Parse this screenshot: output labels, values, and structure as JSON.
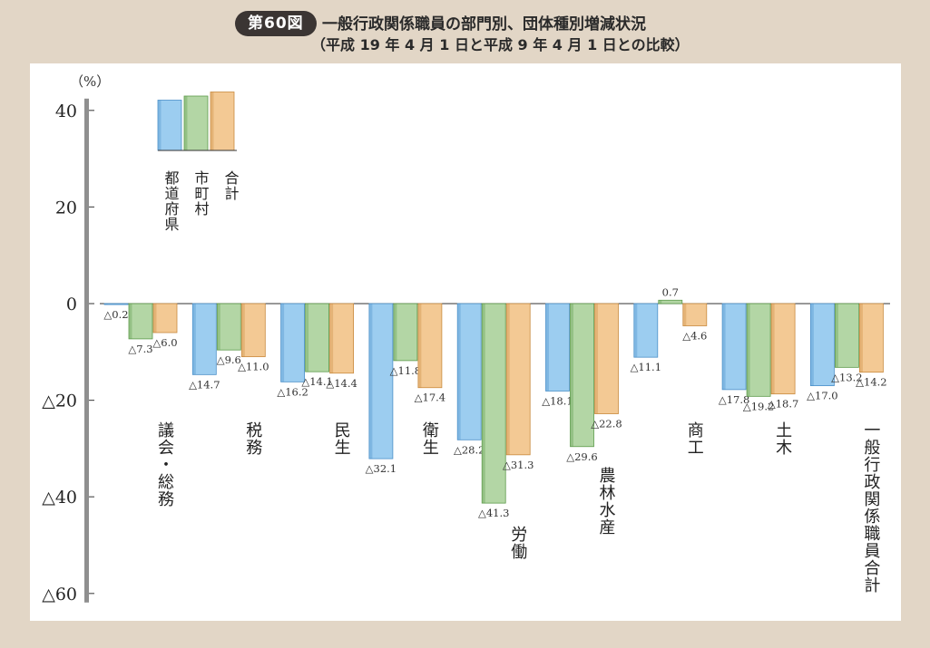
{
  "figure": {
    "badge": "第60図",
    "title_line1": "一般行政関係職員の部門別、団体種別増減状況",
    "title_line2": "（平成 19 年 4 月 1 日と平成 9 年 4 月 1 日との比較）"
  },
  "chart_data": {
    "type": "bar",
    "unit_label": "（%）",
    "ylim": [
      -60,
      40
    ],
    "yticks": [
      {
        "value": 40,
        "label": "40"
      },
      {
        "value": 20,
        "label": "20"
      },
      {
        "value": 0,
        "label": "0"
      },
      {
        "value": -20,
        "label": "△20"
      },
      {
        "value": -40,
        "label": "△40"
      },
      {
        "value": -60,
        "label": "△60"
      }
    ],
    "categories": [
      "議会・総務",
      "税務",
      "民生",
      "衛生",
      "労働",
      "農林水産",
      "商工",
      "土木",
      "一般行政関係職員合計"
    ],
    "series": [
      {
        "name": "都道府県",
        "color": "#9ccdf0",
        "edge": "#4a8fc9",
        "values": [
          -0.2,
          -14.7,
          -16.2,
          -32.1,
          -28.2,
          -18.1,
          -11.1,
          -17.8,
          -17.0
        ],
        "labels": [
          "△0.2",
          "△14.7",
          "△16.2",
          "△32.1",
          "△28.2",
          "△18.1",
          "△11.1",
          "△17.8",
          "△17.0"
        ]
      },
      {
        "name": "市町村",
        "color": "#b3d6a5",
        "edge": "#5c9a4a",
        "values": [
          -7.3,
          -9.6,
          -14.1,
          -11.8,
          -41.3,
          -29.6,
          0.7,
          -19.2,
          -13.2
        ],
        "labels": [
          "△7.3",
          "△9.6",
          "△14.1",
          "△11.8",
          "△41.3",
          "△29.6",
          "0.7",
          "△19.2",
          "△13.2"
        ]
      },
      {
        "name": "合計",
        "color": "#f3c994",
        "edge": "#c98a3e",
        "values": [
          -6.0,
          -11.0,
          -14.4,
          -17.4,
          -31.3,
          -22.8,
          -4.6,
          -18.7,
          -14.2
        ],
        "labels": [
          "△6.0",
          "△11.0",
          "△14.4",
          "△17.4",
          "△31.3",
          "△22.8",
          "△4.6",
          "△18.7",
          "△14.2"
        ]
      }
    ],
    "legend": {
      "placement": "top-left",
      "sample_values": [
        37,
        40,
        43
      ]
    }
  }
}
